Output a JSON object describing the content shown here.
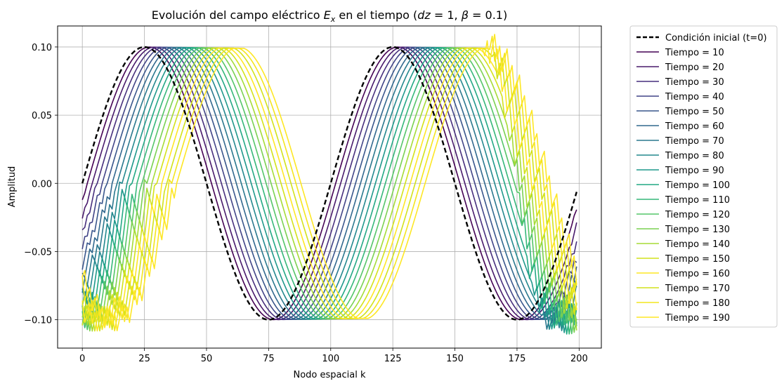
{
  "chart_data": {
    "type": "line",
    "title": "Evolución del campo eléctrico Eₓ en el tiempo  (dz = 1, β = 0.1)",
    "title_parts": {
      "prefix": "Evolución del campo eléctrico ",
      "var_main": "E",
      "var_sub": "x",
      "middle": " en el tiempo  (",
      "dz": "dz",
      "dz_val": " = 1, ",
      "beta": "β",
      "beta_val": " = 0.1)"
    },
    "xlabel": "Nodo espacial k",
    "ylabel": "Amplitud",
    "xlim": [
      -9.95,
      208.95
    ],
    "ylim": [
      -0.1208,
      0.1154
    ],
    "xticks": [
      0,
      25,
      50,
      75,
      100,
      125,
      150,
      175,
      200
    ],
    "yticks": [
      -0.1,
      -0.05,
      0.0,
      0.05,
      0.1
    ],
    "ytick_labels": [
      "−0.10",
      "−0.05",
      "0.00",
      "0.05",
      "0.10"
    ],
    "grid": true,
    "legend_position": "outside-right",
    "wave": {
      "amplitude": 0.1,
      "period": 100,
      "nodes": 200
    },
    "series": [
      {
        "name": "Condición inicial (t=0)",
        "color": "#000000",
        "style": "dashed",
        "shift": 0
      },
      {
        "name": "Tiempo = 10",
        "color": "#440154",
        "style": "solid",
        "shift": 2
      },
      {
        "name": "Tiempo = 20",
        "color": "#481a6c",
        "style": "solid",
        "shift": 4
      },
      {
        "name": "Tiempo = 30",
        "color": "#472f7d",
        "style": "solid",
        "shift": 6
      },
      {
        "name": "Tiempo = 40",
        "color": "#414487",
        "style": "solid",
        "shift": 8
      },
      {
        "name": "Tiempo = 50",
        "color": "#39568c",
        "style": "solid",
        "shift": 10
      },
      {
        "name": "Tiempo = 60",
        "color": "#31688e",
        "style": "solid",
        "shift": 12
      },
      {
        "name": "Tiempo = 70",
        "color": "#2a788e",
        "style": "solid",
        "shift": 14
      },
      {
        "name": "Tiempo = 80",
        "color": "#23888e",
        "style": "solid",
        "shift": 16
      },
      {
        "name": "Tiempo = 90",
        "color": "#1f988b",
        "style": "solid",
        "shift": 18
      },
      {
        "name": "Tiempo = 100",
        "color": "#22a884",
        "style": "solid",
        "shift": 20
      },
      {
        "name": "Tiempo = 110",
        "color": "#35b779",
        "style": "solid",
        "shift": 22
      },
      {
        "name": "Tiempo = 120",
        "color": "#54c568",
        "style": "solid",
        "shift": 24
      },
      {
        "name": "Tiempo = 130",
        "color": "#7ad151",
        "style": "solid",
        "shift": 26
      },
      {
        "name": "Tiempo = 140",
        "color": "#a5db36",
        "style": "solid",
        "shift": 28
      },
      {
        "name": "Tiempo = 150",
        "color": "#d2e21b",
        "style": "solid",
        "shift": 30
      },
      {
        "name": "Tiempo = 160",
        "color": "#fde725",
        "style": "solid",
        "shift": 32
      },
      {
        "name": "Tiempo = 170",
        "color": "#d2e21b",
        "style": "solid",
        "shift": 34
      },
      {
        "name": "Tiempo = 180",
        "color": "#f3e51e",
        "style": "solid",
        "shift": 36
      },
      {
        "name": "Tiempo = 190",
        "color": "#fde725",
        "style": "solid",
        "shift": 38
      }
    ]
  }
}
